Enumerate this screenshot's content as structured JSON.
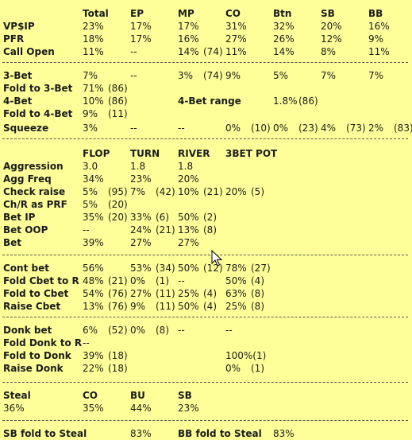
{
  "sections": [
    {
      "name": "preflop-summary",
      "rows": [
        {
          "header": true,
          "cells": [
            null,
            "Total",
            "EP",
            "MP",
            "CO",
            "Btn",
            "SB",
            "BB"
          ]
        },
        {
          "cells": [
            "VP$IP",
            "23%",
            "17%",
            "17%",
            "31%",
            "32%",
            "20%",
            "16%"
          ]
        },
        {
          "cells": [
            "PFR",
            "18%",
            "17%",
            "16%",
            "27%",
            "26%",
            "12%",
            "9%"
          ]
        },
        {
          "cells": [
            "Call Open",
            "11%",
            "--",
            "14%",
            "(74)",
            "11%",
            "14%",
            "8%",
            "11%"
          ]
        }
      ]
    },
    {
      "name": "three-bet-stats",
      "rows": [
        {
          "cells": [
            "3-Bet",
            "7%",
            "--",
            "3%",
            "(74)",
            "9%",
            "5%",
            "7%",
            "7%"
          ]
        },
        {
          "cells": [
            "Fold to 3-Bet",
            "71%",
            "(86)"
          ]
        },
        {
          "cells": [
            "4-Bet",
            "10%",
            "(86)",
            "4-Bet range",
            "1.8%",
            "(86)"
          ]
        },
        {
          "cells": [
            "Fold to 4-Bet",
            "9%",
            "(11)"
          ]
        },
        {
          "cells": [
            "Squeeze",
            "3%",
            "--",
            "--",
            "0%",
            "(10)",
            "0%",
            "(23)",
            "4%",
            "(73)",
            "2%",
            "(83)"
          ]
        }
      ]
    },
    {
      "name": "postflop-aggression",
      "rows": [
        {
          "header": true,
          "cells": [
            null,
            "FLOP",
            "TURN",
            "RIVER",
            "3BET POT"
          ]
        },
        {
          "cells": [
            "Aggression",
            "3.0",
            "1.8",
            "1.8"
          ]
        },
        {
          "cells": [
            "Agg Freq",
            "34%",
            "23%",
            "20%"
          ]
        },
        {
          "cells": [
            "Check raise",
            "5%",
            "(95)",
            "7%",
            "(42)",
            "10%",
            "(21)",
            "20%",
            "(5)"
          ]
        },
        {
          "cells": [
            "Ch/R as PRF",
            "5%",
            "(20)"
          ]
        },
        {
          "cells": [
            "Bet IP",
            "35%",
            "(20)",
            "33%",
            "(6)",
            "50%",
            "(2)"
          ]
        },
        {
          "cells": [
            "Bet OOP",
            "--",
            "24%",
            "(21)",
            "13%",
            "(8)"
          ]
        },
        {
          "cells": [
            "Bet",
            "39%",
            "27%",
            "27%"
          ]
        }
      ]
    },
    {
      "name": "cbet-stats",
      "rows": [
        {
          "cells": [
            "Cont bet",
            "56%",
            "53%",
            "(34)",
            "50%",
            "(12)",
            "78%",
            "(27)"
          ]
        },
        {
          "cells": [
            "Fold Cbet to R",
            "48%",
            "(21)",
            "0%",
            "(1)",
            "--",
            "50%",
            "(4)"
          ]
        },
        {
          "cells": [
            "Fold to Cbet",
            "54%",
            "(76)",
            "27%",
            "(11)",
            "25%",
            "(4)",
            "63%",
            "(8)"
          ]
        },
        {
          "cells": [
            "Raise Cbet",
            "13%",
            "(76)",
            "9%",
            "(11)",
            "50%",
            "(4)",
            "25%",
            "(8)"
          ]
        }
      ]
    },
    {
      "name": "donk-stats",
      "rows": [
        {
          "cells": [
            "Donk bet",
            "6%",
            "(52)",
            "0%",
            "(8)",
            "--",
            "--"
          ]
        },
        {
          "cells": [
            "Fold Donk to R",
            "--"
          ]
        },
        {
          "cells": [
            "Fold to Donk",
            "39%",
            "(18)",
            "100%(1)"
          ]
        },
        {
          "cells": [
            "Raise Donk",
            "22%",
            "(18)",
            "0%",
            "(1)"
          ]
        }
      ]
    },
    {
      "name": "steal-stats",
      "rows": [
        {
          "header": true,
          "cells": [
            "Steal",
            "CO",
            "BU",
            "SB"
          ]
        },
        {
          "cells": [
            "36%",
            "35%",
            "44%",
            "23%"
          ]
        }
      ]
    },
    {
      "name": "steal-defense",
      "rows": [
        {
          "cells": [
            "SB fold to Steal",
            "83%",
            "BB fold to Steal",
            "83%"
          ]
        }
      ]
    }
  ]
}
